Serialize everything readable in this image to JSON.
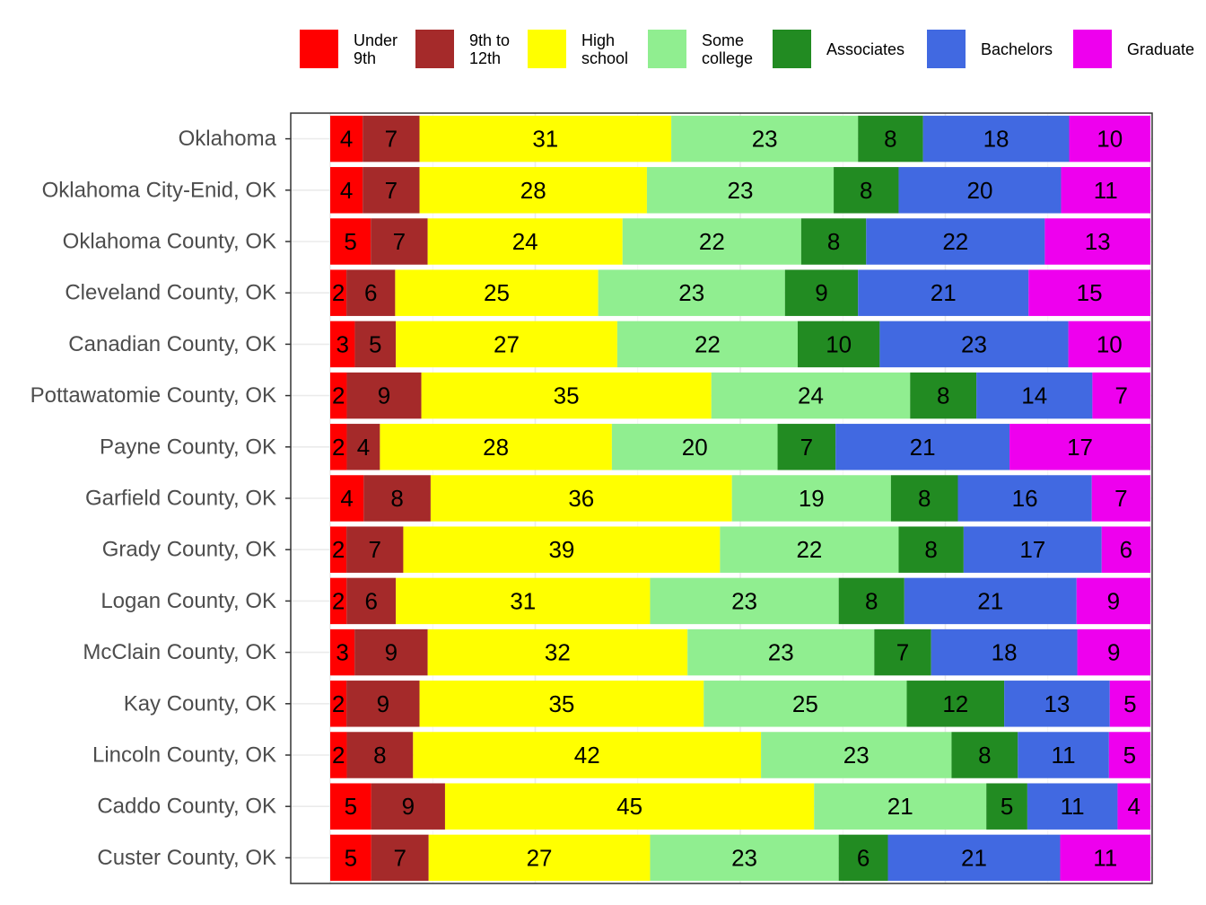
{
  "chart_data": {
    "type": "bar",
    "orientation": "horizontal",
    "stacked": true,
    "normalized": true,
    "grid": true,
    "legend_position": "top",
    "categories": [
      "Oklahoma",
      "Oklahoma City-Enid, OK",
      "Oklahoma County, OK",
      "Cleveland County, OK",
      "Canadian County, OK",
      "Pottawatomie County, OK",
      "Payne County, OK",
      "Garfield County, OK",
      "Grady County, OK",
      "Logan County, OK",
      "McClain County, OK",
      "Kay County, OK",
      "Lincoln County, OK",
      "Caddo County, OK",
      "Custer County, OK"
    ],
    "series": [
      {
        "name": "Under 9th",
        "legend_lines": [
          "Under",
          "9th"
        ],
        "color": "#ff0000",
        "values": [
          4,
          4,
          5,
          2,
          3,
          2,
          2,
          4,
          2,
          2,
          3,
          2,
          2,
          5,
          5
        ]
      },
      {
        "name": "9th to 12th",
        "legend_lines": [
          "9th to",
          "12th"
        ],
        "color": "#a52a2a",
        "values": [
          7,
          7,
          7,
          6,
          5,
          9,
          4,
          8,
          7,
          6,
          9,
          9,
          8,
          9,
          7
        ]
      },
      {
        "name": "High school",
        "legend_lines": [
          "High",
          "school"
        ],
        "color": "#ffff00",
        "values": [
          31,
          28,
          24,
          25,
          27,
          35,
          28,
          36,
          39,
          31,
          32,
          35,
          42,
          45,
          27
        ]
      },
      {
        "name": "Some college",
        "legend_lines": [
          "Some",
          "college"
        ],
        "color": "#90ee90",
        "values": [
          23,
          23,
          22,
          23,
          22,
          24,
          20,
          19,
          22,
          23,
          23,
          25,
          23,
          21,
          23
        ]
      },
      {
        "name": "Associates",
        "legend_lines": [
          "Associates"
        ],
        "color": "#228b22",
        "values": [
          8,
          8,
          8,
          9,
          10,
          8,
          7,
          8,
          8,
          8,
          7,
          12,
          8,
          5,
          6
        ]
      },
      {
        "name": "Bachelors",
        "legend_lines": [
          "Bachelors"
        ],
        "color": "#4169e1",
        "values": [
          18,
          20,
          22,
          21,
          23,
          14,
          21,
          16,
          17,
          21,
          18,
          13,
          11,
          11,
          21
        ]
      },
      {
        "name": "Graduate",
        "legend_lines": [
          "Graduate"
        ],
        "color": "#ee00ee",
        "values": [
          10,
          11,
          13,
          15,
          10,
          7,
          17,
          7,
          6,
          9,
          9,
          5,
          5,
          4,
          11
        ]
      }
    ]
  }
}
